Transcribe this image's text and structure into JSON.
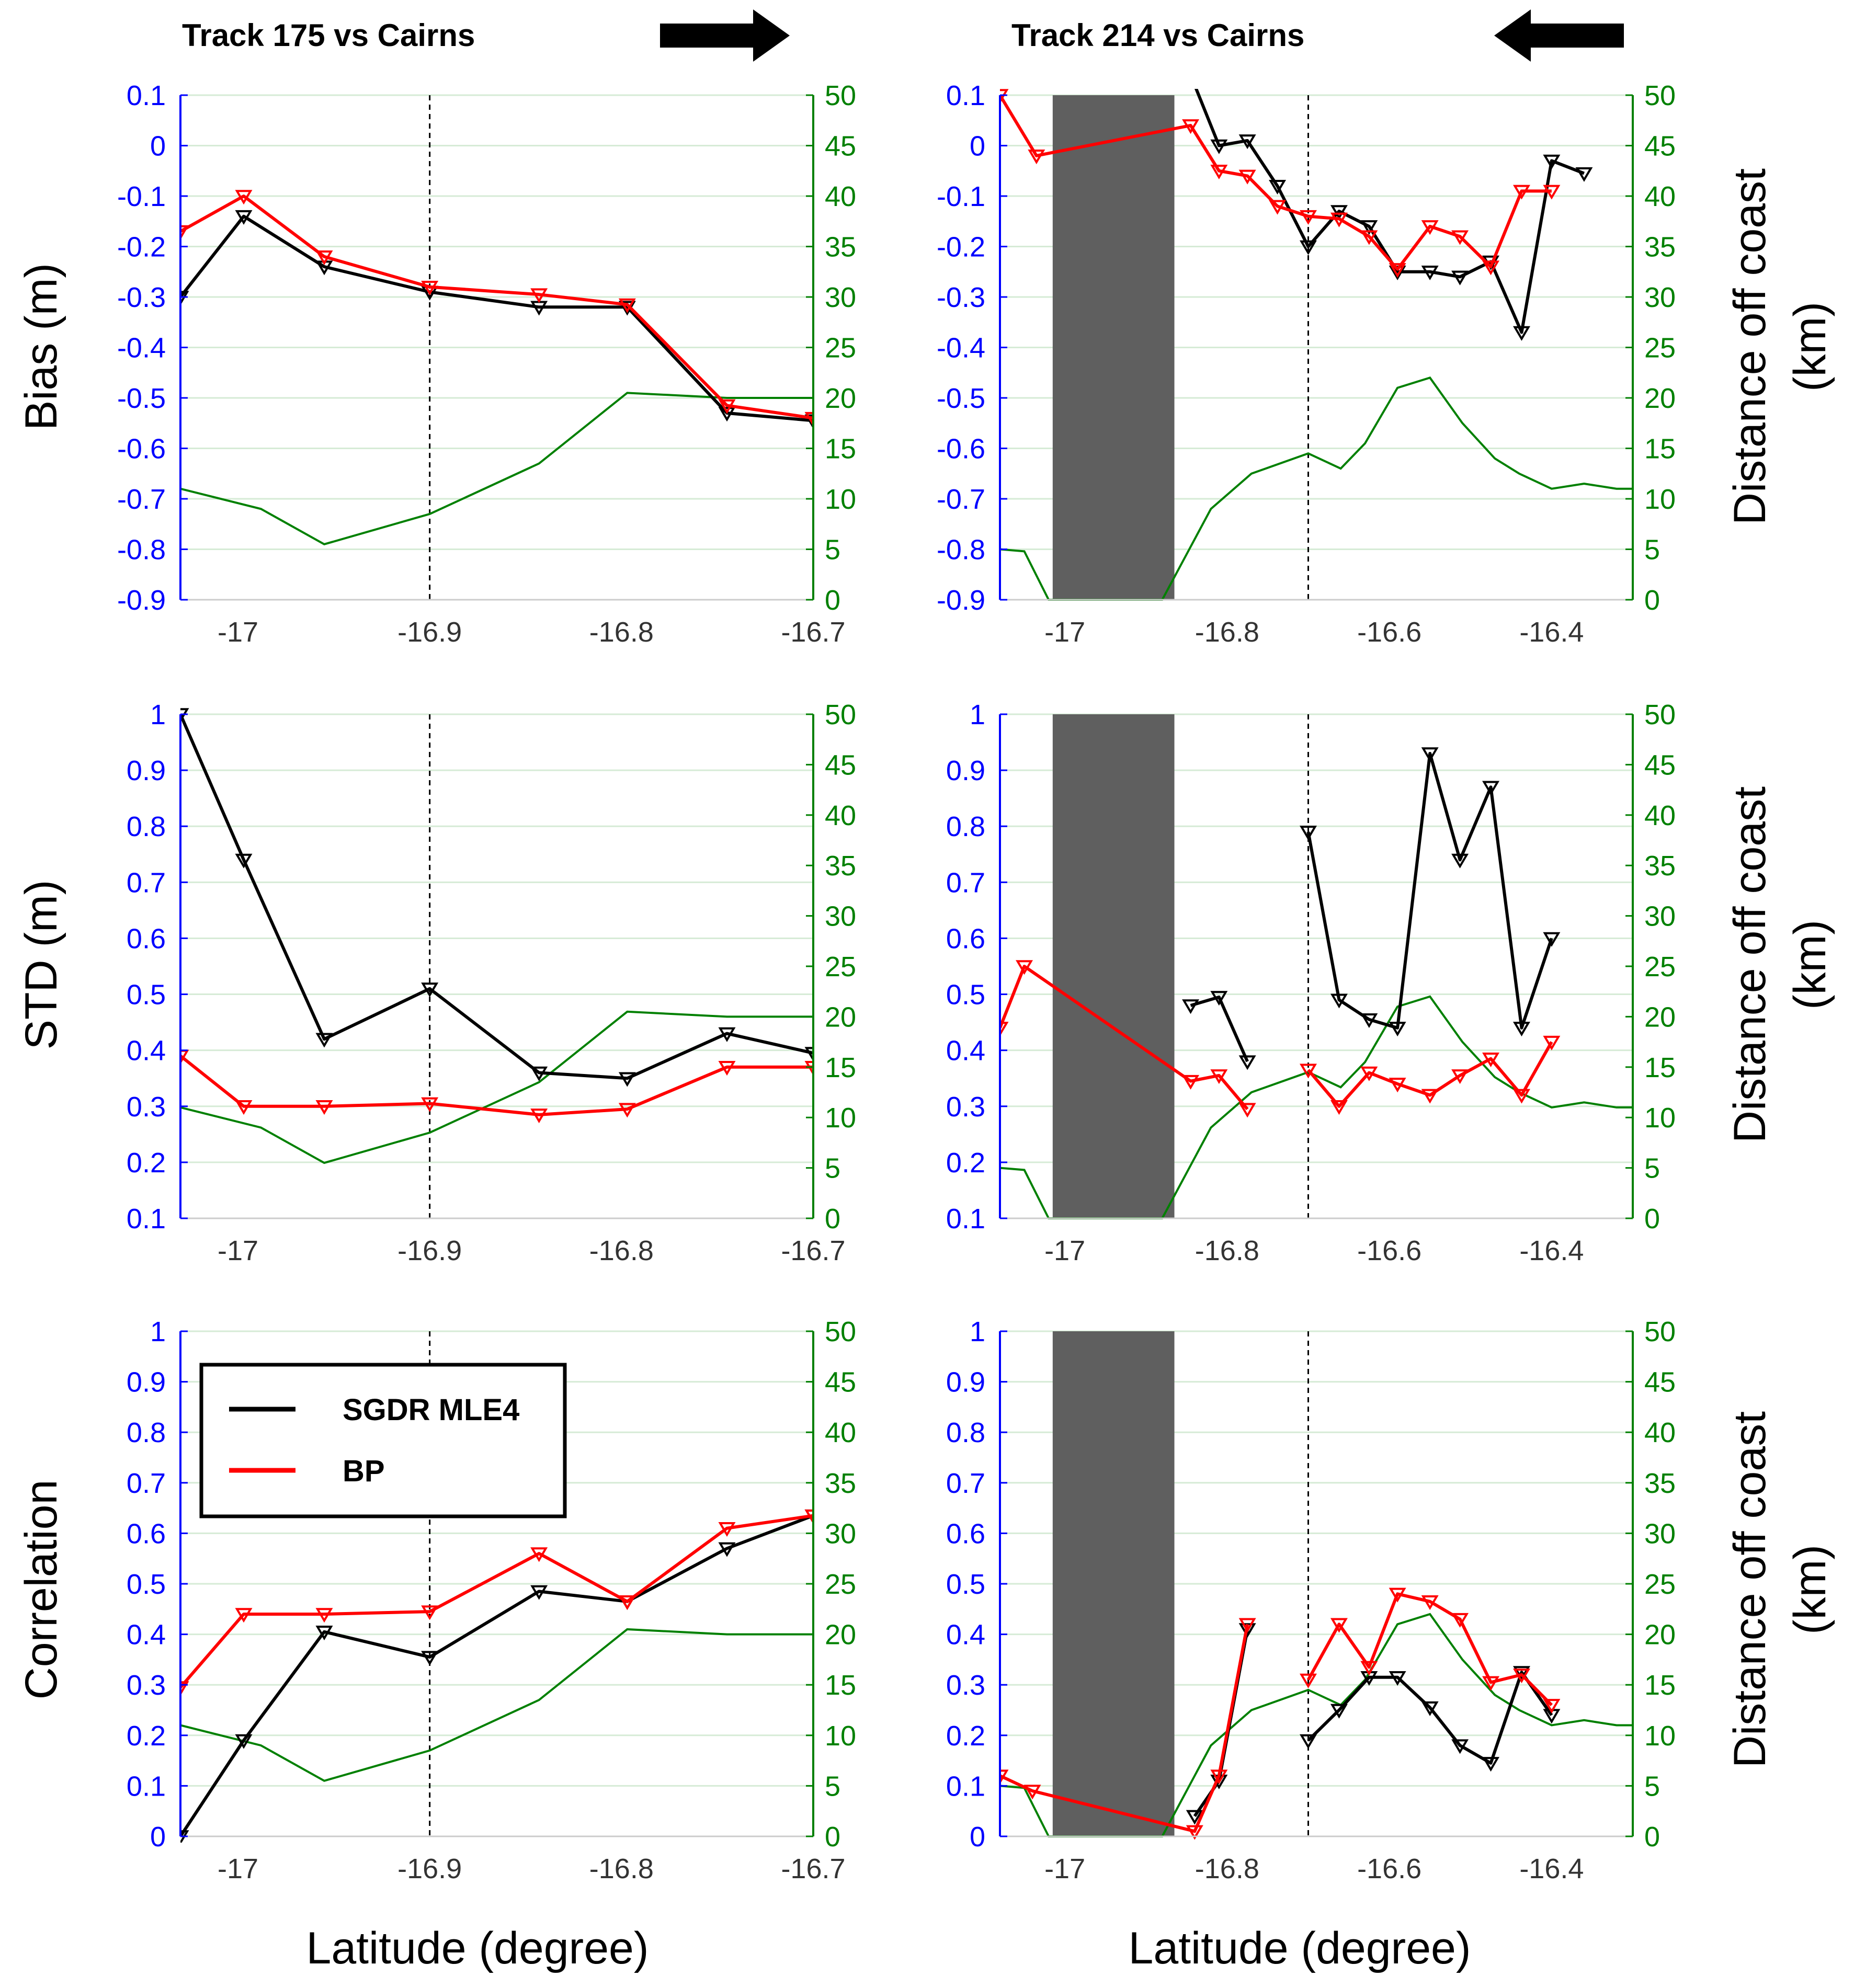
{
  "colors": {
    "left_axis": "#0000ff",
    "right_axis": "#008000",
    "sgdr": "#000000",
    "bp": "#ff0000",
    "distance": "#008000",
    "grid": "#d6ebd6",
    "gap": "#5f5f5f"
  },
  "labels": {
    "title_left": "Track 175 vs Cairns",
    "title_right": "Track 214 vs Cairns",
    "arrow_left": "right-arrow-icon",
    "arrow_right": "left-arrow-icon",
    "ylabel_bias": "Bias (m)",
    "ylabel_std": "STD (m)",
    "ylabel_corr": "Correlation",
    "ylabel_right_line1": "Distance off coast",
    "ylabel_right_line2": "(km)",
    "xlabel": "Latitude (degree)",
    "legend_sgdr": "SGDR MLE4",
    "legend_bp": "BP"
  },
  "chart_data": [
    {
      "id": "t175-bias",
      "type": "line",
      "track": "Track 175 vs Cairns",
      "ylabel": "Bias (m)",
      "xlim": [
        -17.03,
        -16.7
      ],
      "xticks": [
        -17,
        -16.9,
        -16.8,
        -16.7
      ],
      "xtick_labels": [
        "-17",
        "-16.9",
        "-16.8",
        "-16.7"
      ],
      "ylim": [
        -0.9,
        0.1
      ],
      "yticks": [
        -0.9,
        -0.8,
        -0.7,
        -0.6,
        -0.5,
        -0.4,
        -0.3,
        -0.2,
        -0.1,
        0,
        0.1
      ],
      "ytick_labels": [
        "-0.9",
        "-0.8",
        "-0.7",
        "-0.6",
        "-0.5",
        "-0.4",
        "-0.3",
        "-0.2",
        "-0.1",
        "0",
        "0.1"
      ],
      "y2lim": [
        0,
        50
      ],
      "y2ticks": [
        "0",
        "5",
        "10",
        "15",
        "20",
        "25",
        "30",
        "35",
        "40",
        "45",
        "50"
      ],
      "vline": -16.9,
      "gap": null,
      "x": [
        -17.03,
        -16.997,
        -16.955,
        -16.9,
        -16.843,
        -16.797,
        -16.745,
        -16.7
      ],
      "series": [
        {
          "name": "SGDR MLE4",
          "values": [
            -0.3,
            -0.14,
            -0.24,
            -0.29,
            -0.32,
            -0.32,
            -0.53,
            -0.545
          ]
        },
        {
          "name": "BP",
          "values": [
            -0.17,
            -0.1,
            -0.22,
            -0.28,
            -0.295,
            -0.315,
            -0.515,
            -0.54
          ]
        }
      ],
      "distance": {
        "x": [
          -17.03,
          -16.988,
          -16.955,
          -16.9,
          -16.843,
          -16.797,
          -16.745,
          -16.7
        ],
        "values": [
          11,
          9,
          5.5,
          8.5,
          13.5,
          20.5,
          20,
          20
        ]
      }
    },
    {
      "id": "t214-bias",
      "type": "line",
      "track": "Track 214 vs Cairns",
      "ylabel": "Bias (m)",
      "xlim": [
        -17.08,
        -16.3
      ],
      "xticks": [
        -17,
        -16.8,
        -16.6,
        -16.4
      ],
      "xtick_labels": [
        "-17",
        "-16.8",
        "-16.6",
        "-16.4"
      ],
      "ylim": [
        -0.9,
        0.1
      ],
      "yticks": [
        -0.9,
        -0.8,
        -0.7,
        -0.6,
        -0.5,
        -0.4,
        -0.3,
        -0.2,
        -0.1,
        0,
        0.1
      ],
      "ytick_labels": [
        "-0.9",
        "-0.8",
        "-0.7",
        "-0.6",
        "-0.5",
        "-0.4",
        "-0.3",
        "-0.2",
        "-0.1",
        "0",
        "0.1"
      ],
      "y2lim": [
        0,
        50
      ],
      "y2ticks": [
        "0",
        "5",
        "10",
        "15",
        "20",
        "25",
        "30",
        "35",
        "40",
        "45",
        "50"
      ],
      "vline": -16.7,
      "gap": [
        -17.015,
        -16.865
      ],
      "x": [
        -17.08,
        -17.035,
        -16.845,
        -16.81,
        -16.775,
        -16.738,
        -16.7,
        -16.662,
        -16.625,
        -16.59,
        -16.55,
        -16.513,
        -16.475,
        -16.437,
        -16.4,
        -16.36,
        -16.32,
        -16.3
      ],
      "series": [
        {
          "name": "SGDR MLE4",
          "values": [
            null,
            null,
            0.14,
            0.0,
            0.01,
            -0.08,
            -0.2,
            -0.13,
            -0.16,
            -0.25,
            -0.25,
            -0.26,
            -0.23,
            -0.37,
            -0.03,
            -0.055,
            null,
            null
          ]
        },
        {
          "name": "BP",
          "values": [
            0.1,
            -0.02,
            0.04,
            -0.05,
            -0.06,
            -0.12,
            -0.14,
            -0.145,
            -0.18,
            -0.245,
            -0.16,
            -0.18,
            -0.24,
            -0.09,
            -0.09,
            null,
            null,
            null
          ]
        }
      ],
      "distance": {
        "x": [
          -17.08,
          -17.05,
          -17.02,
          -16.88,
          -16.82,
          -16.77,
          -16.7,
          -16.66,
          -16.63,
          -16.59,
          -16.55,
          -16.51,
          -16.47,
          -16.44,
          -16.4,
          -16.36,
          -16.32,
          -16.3
        ],
        "values": [
          5,
          4.8,
          0,
          0,
          9,
          12.5,
          14.5,
          13,
          15.5,
          21,
          22,
          17.5,
          14,
          12.5,
          11,
          11.5,
          11,
          11
        ]
      }
    },
    {
      "id": "t175-std",
      "type": "line",
      "track": "Track 175 vs Cairns",
      "ylabel": "STD (m)",
      "xlim": [
        -17.03,
        -16.7
      ],
      "xticks": [
        -17,
        -16.9,
        -16.8,
        -16.7
      ],
      "xtick_labels": [
        "-17",
        "-16.9",
        "-16.8",
        "-16.7"
      ],
      "ylim": [
        0.1,
        1.0
      ],
      "yticks": [
        0.1,
        0.2,
        0.3,
        0.4,
        0.5,
        0.6,
        0.7,
        0.8,
        0.9,
        1
      ],
      "ytick_labels": [
        "0.1",
        "0.2",
        "0.3",
        "0.4",
        "0.5",
        "0.6",
        "0.7",
        "0.8",
        "0.9",
        "1"
      ],
      "y2lim": [
        0,
        50
      ],
      "y2ticks": [
        "0",
        "5",
        "10",
        "15",
        "20",
        "25",
        "30",
        "35",
        "40",
        "45",
        "50"
      ],
      "vline": -16.9,
      "gap": null,
      "x": [
        -17.03,
        -16.997,
        -16.955,
        -16.9,
        -16.843,
        -16.797,
        -16.745,
        -16.7
      ],
      "series": [
        {
          "name": "SGDR MLE4",
          "values": [
            1.0,
            0.74,
            0.42,
            0.51,
            0.36,
            0.35,
            0.43,
            0.395
          ]
        },
        {
          "name": "BP",
          "values": [
            0.39,
            0.3,
            0.3,
            0.305,
            0.285,
            0.295,
            0.37,
            0.37
          ]
        }
      ],
      "distance": {
        "x": [
          -17.03,
          -16.988,
          -16.955,
          -16.9,
          -16.843,
          -16.797,
          -16.745,
          -16.7
        ],
        "values": [
          11,
          9,
          5.5,
          8.5,
          13.5,
          20.5,
          20,
          20
        ]
      }
    },
    {
      "id": "t214-std",
      "type": "line",
      "track": "Track 214 vs Cairns",
      "ylabel": "STD (m)",
      "xlim": [
        -17.08,
        -16.3
      ],
      "xticks": [
        -17,
        -16.8,
        -16.6,
        -16.4
      ],
      "xtick_labels": [
        "-17",
        "-16.8",
        "-16.6",
        "-16.4"
      ],
      "ylim": [
        0.1,
        1.0
      ],
      "yticks": [
        0.1,
        0.2,
        0.3,
        0.4,
        0.5,
        0.6,
        0.7,
        0.8,
        0.9,
        1
      ],
      "ytick_labels": [
        "0.1",
        "0.2",
        "0.3",
        "0.4",
        "0.5",
        "0.6",
        "0.7",
        "0.8",
        "0.9",
        "1"
      ],
      "y2lim": [
        0,
        50
      ],
      "y2ticks": [
        "0",
        "5",
        "10",
        "15",
        "20",
        "25",
        "30",
        "35",
        "40",
        "45",
        "50"
      ],
      "vline": -16.7,
      "gap": [
        -17.015,
        -16.865
      ],
      "x": [
        -17.08,
        -17.05,
        -16.845,
        -16.81,
        -16.775,
        -16.738,
        -16.7,
        -16.662,
        -16.625,
        -16.59,
        -16.55,
        -16.513,
        -16.475,
        -16.437,
        -16.4,
        -16.36,
        -16.32,
        -16.3
      ],
      "series": [
        {
          "name": "SGDR MLE4",
          "values": [
            null,
            null,
            0.48,
            0.495,
            0.38,
            null,
            0.79,
            0.49,
            0.455,
            0.44,
            0.93,
            0.74,
            0.87,
            0.44,
            0.6,
            null,
            null,
            null
          ]
        },
        {
          "name": "BP",
          "values": [
            0.44,
            0.55,
            0.345,
            0.355,
            0.295,
            null,
            0.365,
            0.3,
            0.36,
            0.34,
            0.32,
            0.355,
            0.385,
            0.32,
            0.415,
            null,
            null,
            null
          ]
        }
      ],
      "distance": {
        "x": [
          -17.08,
          -17.05,
          -17.02,
          -16.88,
          -16.82,
          -16.77,
          -16.7,
          -16.66,
          -16.63,
          -16.59,
          -16.55,
          -16.51,
          -16.47,
          -16.44,
          -16.4,
          -16.36,
          -16.32,
          -16.3
        ],
        "values": [
          5,
          4.8,
          0,
          0,
          9,
          12.5,
          14.5,
          13,
          15.5,
          21,
          22,
          17.5,
          14,
          12.5,
          11,
          11.5,
          11,
          11
        ]
      }
    },
    {
      "id": "t175-corr",
      "type": "line",
      "track": "Track 175 vs Cairns",
      "ylabel": "Correlation",
      "xlim": [
        -17.03,
        -16.7
      ],
      "xticks": [
        -17,
        -16.9,
        -16.8,
        -16.7
      ],
      "xtick_labels": [
        "-17",
        "-16.9",
        "-16.8",
        "-16.7"
      ],
      "ylim": [
        0,
        1.0
      ],
      "yticks": [
        0,
        0.1,
        0.2,
        0.3,
        0.4,
        0.5,
        0.6,
        0.7,
        0.8,
        0.9,
        1
      ],
      "ytick_labels": [
        "0",
        "0.1",
        "0.2",
        "0.3",
        "0.4",
        "0.5",
        "0.6",
        "0.7",
        "0.8",
        "0.9",
        "1"
      ],
      "y2lim": [
        0,
        50
      ],
      "y2ticks": [
        "0",
        "5",
        "10",
        "15",
        "20",
        "25",
        "30",
        "35",
        "40",
        "45",
        "50"
      ],
      "vline": -16.9,
      "gap": null,
      "legend": "top-left",
      "x": [
        -17.03,
        -16.997,
        -16.955,
        -16.9,
        -16.843,
        -16.797,
        -16.745,
        -16.7
      ],
      "series": [
        {
          "name": "SGDR MLE4",
          "values": [
            0.0,
            0.19,
            0.405,
            0.355,
            0.485,
            0.465,
            0.57,
            0.635
          ]
        },
        {
          "name": "BP",
          "values": [
            0.295,
            0.44,
            0.44,
            0.445,
            0.56,
            0.465,
            0.61,
            0.635
          ]
        }
      ],
      "distance": {
        "x": [
          -17.03,
          -16.988,
          -16.955,
          -16.9,
          -16.843,
          -16.797,
          -16.745,
          -16.7
        ],
        "values": [
          11,
          9,
          5.5,
          8.5,
          13.5,
          20.5,
          20,
          20
        ]
      }
    },
    {
      "id": "t214-corr",
      "type": "line",
      "track": "Track 214 vs Cairns",
      "ylabel": "Correlation",
      "xlim": [
        -17.08,
        -16.3
      ],
      "xticks": [
        -17,
        -16.8,
        -16.6,
        -16.4
      ],
      "xtick_labels": [
        "-17",
        "-16.8",
        "-16.6",
        "-16.4"
      ],
      "ylim": [
        0,
        1.0
      ],
      "yticks": [
        0,
        0.1,
        0.2,
        0.3,
        0.4,
        0.5,
        0.6,
        0.7,
        0.8,
        0.9,
        1
      ],
      "ytick_labels": [
        "0",
        "0.1",
        "0.2",
        "0.3",
        "0.4",
        "0.5",
        "0.6",
        "0.7",
        "0.8",
        "0.9",
        "1"
      ],
      "y2lim": [
        0,
        50
      ],
      "y2ticks": [
        "0",
        "5",
        "10",
        "15",
        "20",
        "25",
        "30",
        "35",
        "40",
        "45",
        "50"
      ],
      "vline": -16.7,
      "gap": [
        -17.015,
        -16.865
      ],
      "x": [
        -17.08,
        -17.04,
        -16.84,
        -16.81,
        -16.775,
        -16.738,
        -16.7,
        -16.662,
        -16.625,
        -16.59,
        -16.55,
        -16.513,
        -16.475,
        -16.437,
        -16.4,
        -16.36,
        -16.32,
        -16.3
      ],
      "series": [
        {
          "name": "SGDR MLE4",
          "values": [
            null,
            null,
            0.04,
            0.11,
            0.41,
            null,
            0.19,
            0.25,
            0.315,
            0.315,
            0.255,
            0.18,
            0.145,
            0.325,
            0.24,
            null,
            null,
            null
          ]
        },
        {
          "name": "BP",
          "values": [
            0.12,
            0.09,
            0.01,
            0.12,
            0.42,
            null,
            0.31,
            0.42,
            0.335,
            0.48,
            0.465,
            0.43,
            0.305,
            0.32,
            0.26,
            null,
            null,
            null
          ]
        }
      ],
      "distance": {
        "x": [
          -17.08,
          -17.05,
          -17.02,
          -16.88,
          -16.82,
          -16.77,
          -16.7,
          -16.66,
          -16.63,
          -16.59,
          -16.55,
          -16.51,
          -16.47,
          -16.44,
          -16.4,
          -16.36,
          -16.32,
          -16.3
        ],
        "values": [
          5,
          4.8,
          0,
          0,
          9,
          12.5,
          14.5,
          13,
          15.5,
          21,
          22,
          17.5,
          14,
          12.5,
          11,
          11.5,
          11,
          11
        ]
      }
    }
  ]
}
